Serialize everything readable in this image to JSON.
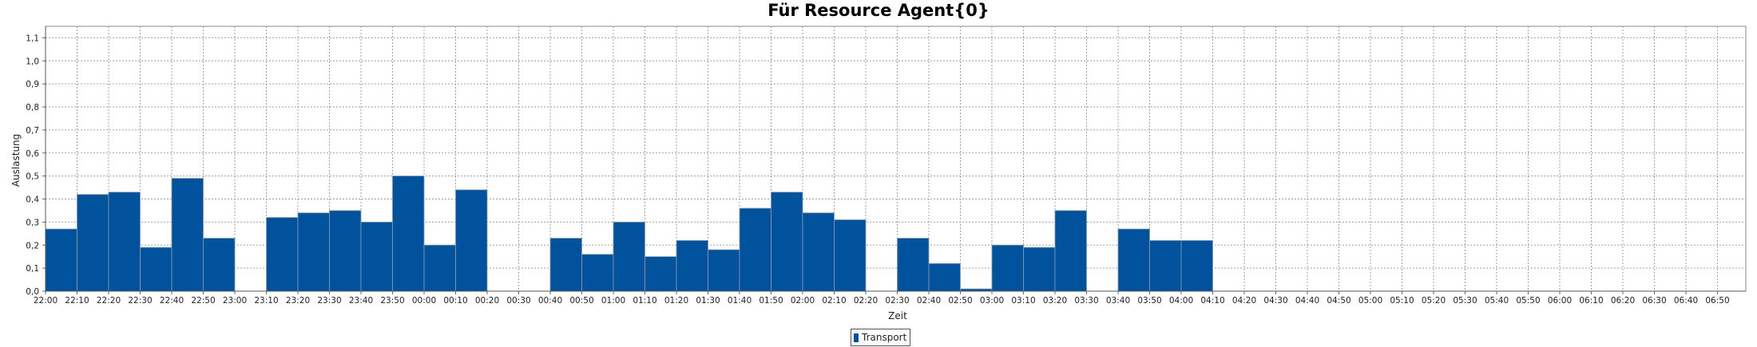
{
  "chart_data": {
    "type": "bar",
    "title": "Für Resource Agent{0}",
    "xlabel": "Zeit",
    "ylabel": "Auslastung",
    "ylim": [
      0,
      1.15
    ],
    "yticks": [
      "0,0",
      "0,1",
      "0,2",
      "0,3",
      "0,4",
      "0,5",
      "0,6",
      "0,7",
      "0,8",
      "0,9",
      "1,0",
      "1,1"
    ],
    "grid": true,
    "legend_position": "bottom",
    "colors": {
      "bar": "#00529c",
      "bar_edge": "#8a9bb0",
      "grid": "#a0a0a0"
    },
    "categories": [
      "22:00",
      "22:10",
      "22:20",
      "22:30",
      "22:40",
      "22:50",
      "23:00",
      "23:10",
      "23:20",
      "23:30",
      "23:40",
      "23:50",
      "00:00",
      "00:10",
      "00:20",
      "00:30",
      "00:40",
      "00:50",
      "01:00",
      "01:10",
      "01:20",
      "01:30",
      "01:40",
      "01:50",
      "02:00",
      "02:10",
      "02:20",
      "02:30",
      "02:40",
      "02:50",
      "03:00",
      "03:10",
      "03:20",
      "03:30",
      "03:40",
      "03:50",
      "04:00",
      "04:10",
      "04:20",
      "04:30",
      "04:40",
      "04:50",
      "05:00",
      "05:10",
      "05:20",
      "05:30",
      "05:40",
      "05:50",
      "06:00",
      "06:10",
      "06:20",
      "06:30",
      "06:40",
      "06:50"
    ],
    "series": [
      {
        "name": "Transport",
        "values": [
          0.27,
          0.42,
          0.43,
          0.19,
          0.49,
          0.23,
          0,
          0.32,
          0.34,
          0.35,
          0.3,
          0.5,
          0.2,
          0.44,
          0,
          0,
          0.23,
          0.16,
          0.3,
          0.15,
          0.22,
          0.18,
          0.36,
          0.43,
          0.34,
          0.31,
          0,
          0.23,
          0.12,
          0.01,
          0.2,
          0.19,
          0.35,
          0,
          0.27,
          0.22,
          0.22,
          0,
          0,
          0,
          0,
          0,
          0,
          0,
          0,
          0,
          0,
          0,
          0,
          0,
          0,
          0,
          0,
          0
        ]
      }
    ]
  }
}
